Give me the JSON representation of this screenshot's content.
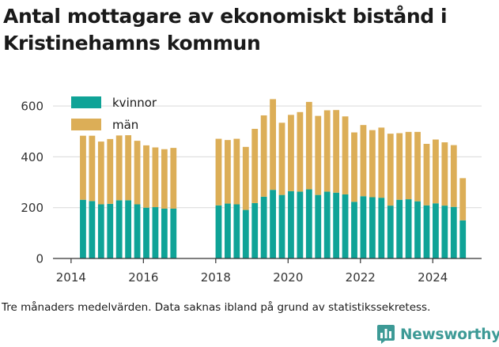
{
  "title": "Antal mottagare av ekonomiskt bistånd i Kristinehamns kommun",
  "footnote": "Tre månaders medelvärden. Data saknas ibland på grund av statistikssekretess.",
  "brand": {
    "name": "Newsworthy",
    "icon": "newsworthy-chart-logo-icon",
    "color": "#3d9a96"
  },
  "colors": {
    "kvinnor": "#0fa397",
    "man": "#dcae57",
    "gridline": "#d9d9d9",
    "axis": "#333333"
  },
  "chart_data": {
    "type": "bar",
    "stacked": true,
    "title": "Antal mottagare av ekonomiskt bistånd i Kristinehamns kommun",
    "xlabel": "",
    "ylabel": "",
    "ylim": [
      0,
      650
    ],
    "xlim": [
      2013.5,
      2025.35
    ],
    "yticks": [
      0,
      200,
      400,
      600
    ],
    "xticks": [
      2014,
      2016,
      2018,
      2020,
      2022,
      2024
    ],
    "xtick_labels": [
      "2014",
      "2016",
      "2018",
      "2020",
      "2022",
      "2024"
    ],
    "ytick_labels": [
      "0",
      "200",
      "400",
      "600"
    ],
    "grid": "horizontal",
    "legend": "top-left",
    "x": [
      2014.33,
      2014.58,
      2014.83,
      2015.08,
      2015.33,
      2015.58,
      2015.83,
      2016.08,
      2016.33,
      2016.58,
      2016.83,
      2018.08,
      2018.33,
      2018.58,
      2018.83,
      2019.08,
      2019.33,
      2019.58,
      2019.83,
      2020.08,
      2020.33,
      2020.58,
      2020.83,
      2021.08,
      2021.33,
      2021.58,
      2021.83,
      2022.08,
      2022.33,
      2022.58,
      2022.83,
      2023.08,
      2023.33,
      2023.58,
      2023.83,
      2024.08,
      2024.33,
      2024.58,
      2024.83
    ],
    "series": [
      {
        "name": "kvinnor",
        "color": "#0fa397",
        "values": [
          231,
          226,
          213,
          215,
          229,
          229,
          213,
          200,
          202,
          196,
          196,
          209,
          216,
          213,
          191,
          218,
          243,
          270,
          250,
          265,
          263,
          272,
          250,
          263,
          259,
          252,
          223,
          245,
          241,
          239,
          208,
          231,
          233,
          225,
          209,
          217,
          208,
          203,
          150
        ]
      },
      {
        "name": "män",
        "color": "#dcae57",
        "values": [
          252,
          257,
          247,
          255,
          255,
          256,
          250,
          245,
          235,
          234,
          239,
          262,
          250,
          258,
          248,
          292,
          320,
          357,
          284,
          300,
          313,
          344,
          311,
          320,
          325,
          307,
          273,
          280,
          264,
          276,
          283,
          262,
          265,
          273,
          242,
          251,
          249,
          243,
          166
        ]
      }
    ]
  }
}
